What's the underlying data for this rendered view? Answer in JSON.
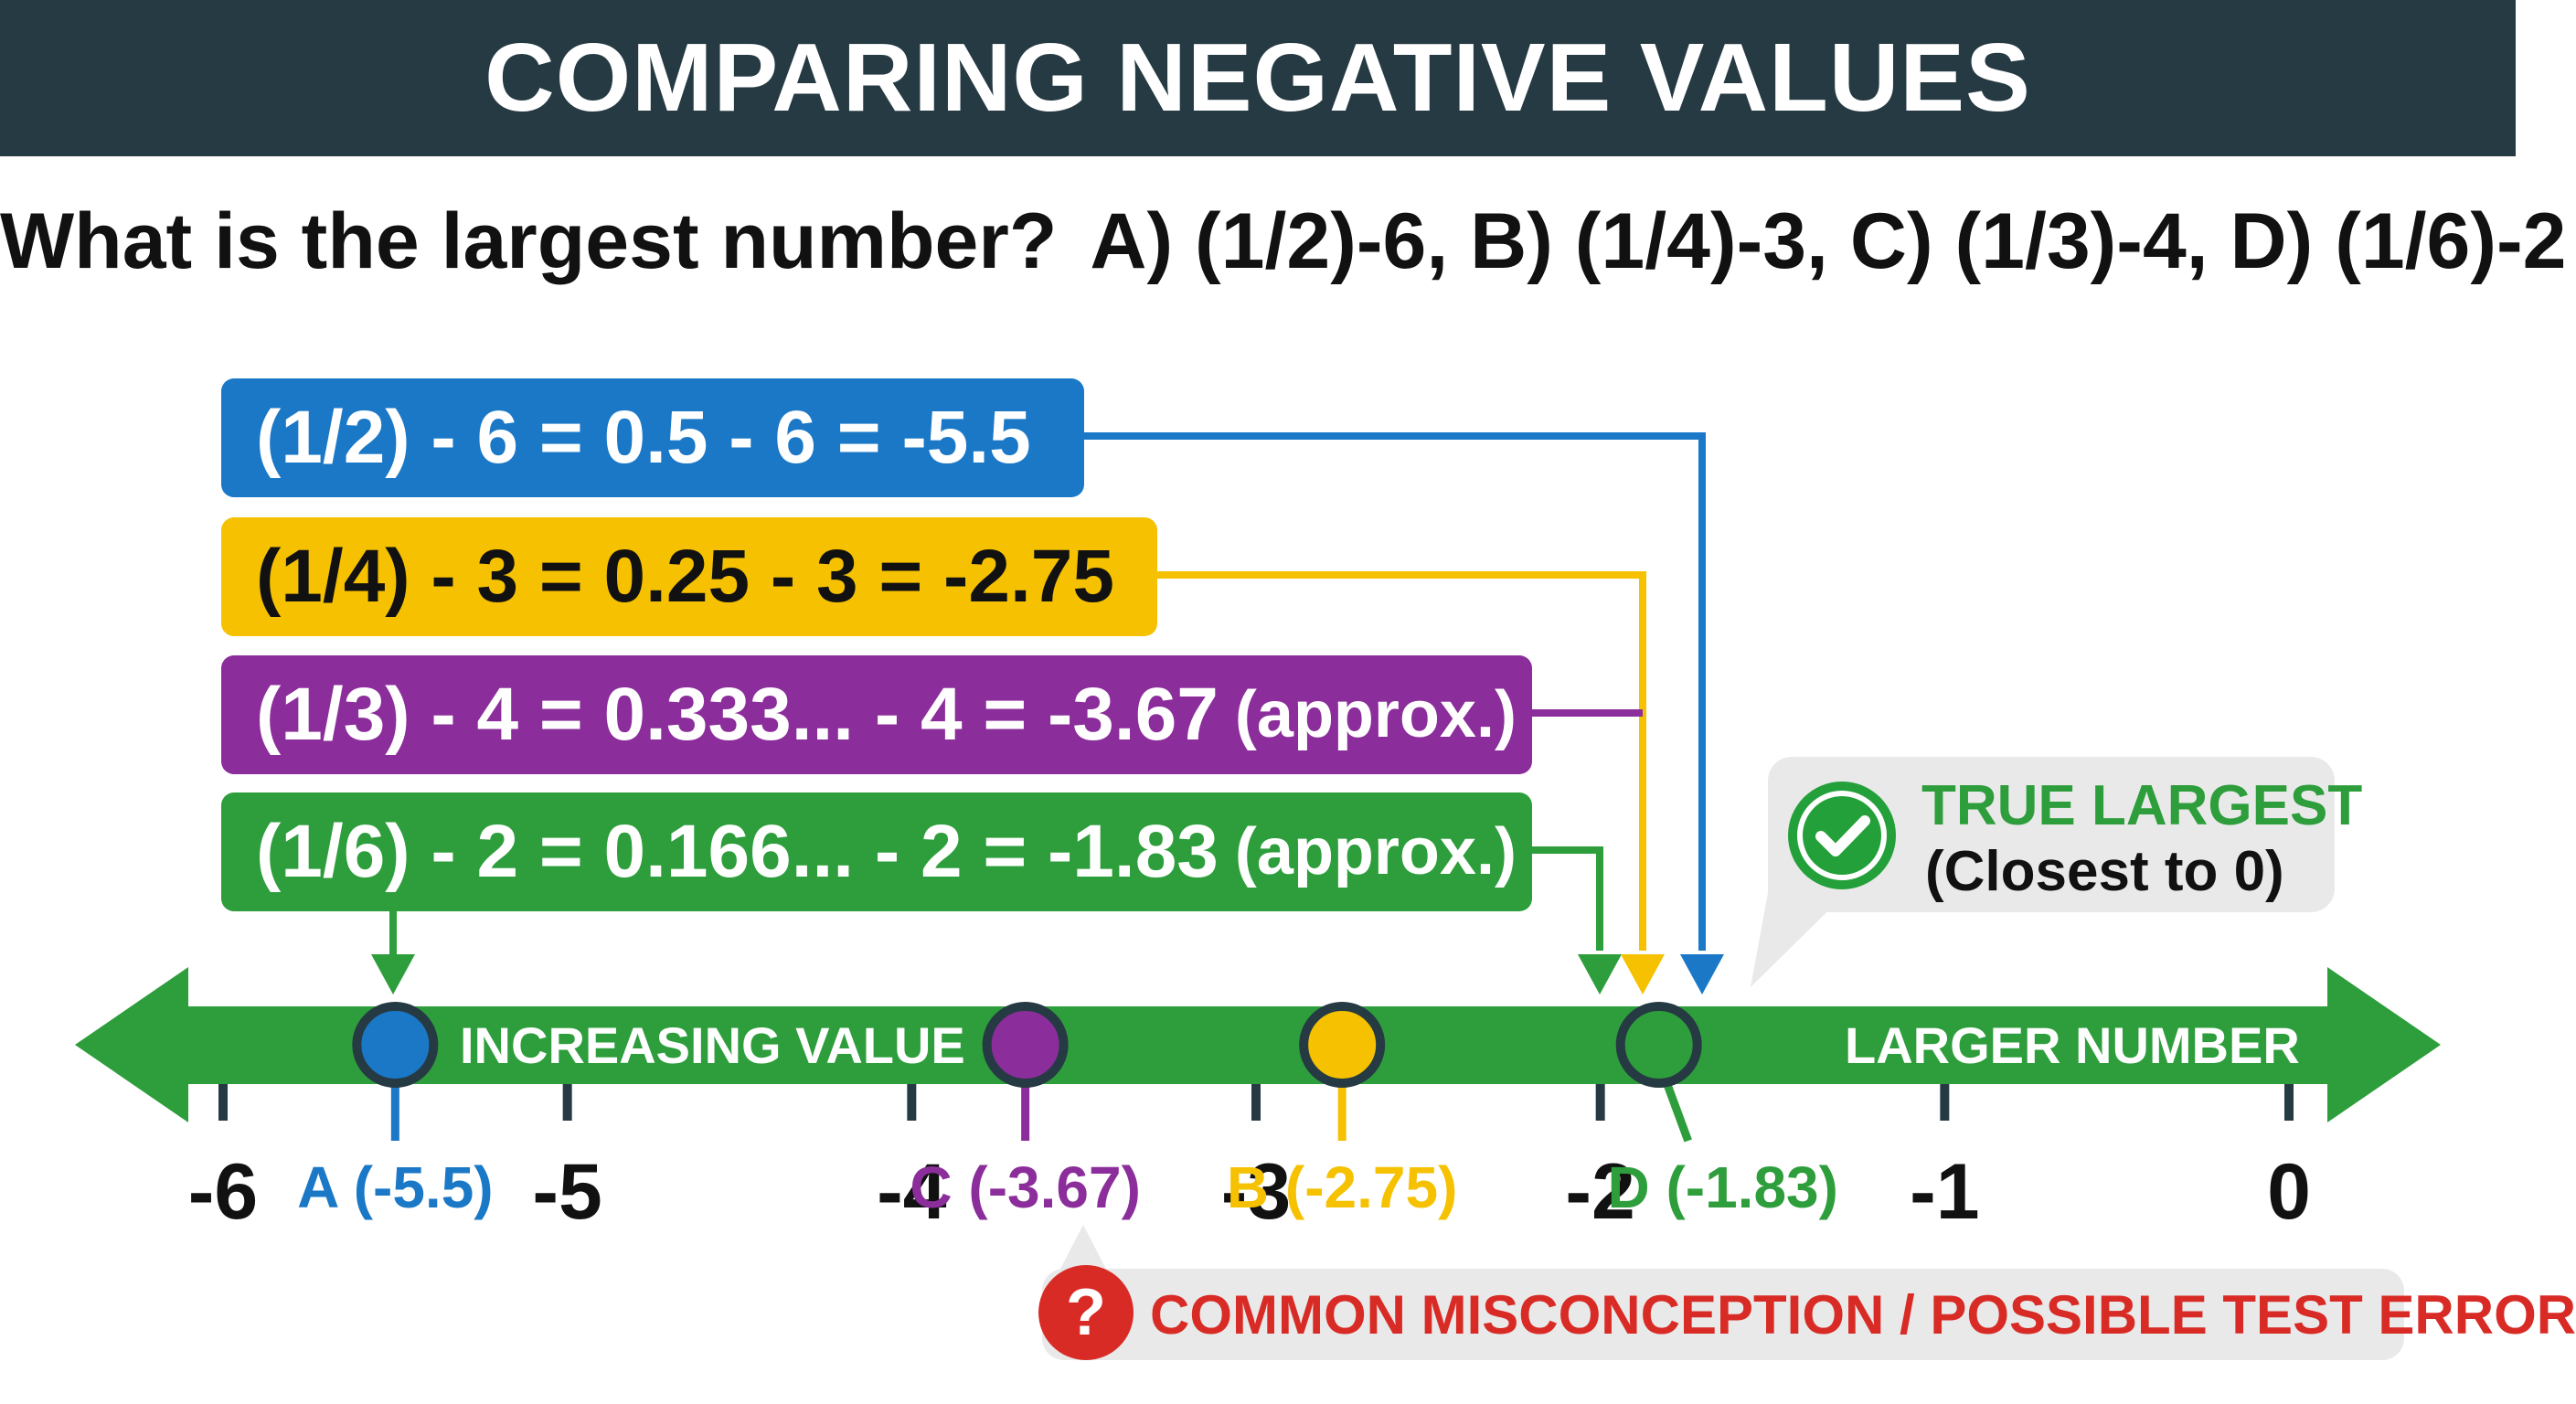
{
  "header": {
    "title": "COMPARING NEGATIVE VALUES"
  },
  "question": {
    "prompt": "What is the largest number?",
    "choices": "A) (1/2)-6, B) (1/4)-3, C) (1/3)-4, D) (1/6)-2"
  },
  "calculations": [
    {
      "id": "A",
      "expression": "(1/2) - 6 = 0.5 - 6 = -5.5",
      "approx": "",
      "color": "#1a78c7"
    },
    {
      "id": "B",
      "expression": "(1/4) - 3 = 0.25 - 3 = -2.75",
      "approx": "",
      "color": "#f5c100"
    },
    {
      "id": "C",
      "expression": "(1/3) - 4 = 0.333... - 4 = -3.67",
      "approx": "(approx.)",
      "color": "#8b2d9a"
    },
    {
      "id": "D",
      "expression": "(1/6) - 2 = 0.166... - 2 = -1.83",
      "approx": "(approx.)",
      "color": "#2d9e3b"
    }
  ],
  "number_line": {
    "range": [
      -6,
      0
    ],
    "ticks": [
      "-6",
      "-5",
      "-4",
      "-3",
      "-2",
      "-1",
      "0"
    ],
    "band_left_label": "INCREASING VALUE",
    "band_right_label": "LARGER NUMBER",
    "band_color": "#2d9e3b",
    "points": [
      {
        "id": "A",
        "value": -5.5,
        "label": "A (-5.5)",
        "color": "#1a78c7"
      },
      {
        "id": "C",
        "value": -3.67,
        "label": "C (-3.67)",
        "color": "#8b2d9a"
      },
      {
        "id": "B",
        "value": -2.75,
        "label": "B (-2.75)",
        "color": "#f5c100"
      },
      {
        "id": "D",
        "value": -1.83,
        "label": "D (-1.83)",
        "color": "#2d9e3b"
      }
    ]
  },
  "callout_true": {
    "title": "TRUE LARGEST",
    "subtitle": "(Closest to 0)",
    "icon": "check-icon"
  },
  "callout_error": {
    "text": "COMMON MISCONCEPTION / POSSIBLE TEST ERROR",
    "icon": "question-icon",
    "glyph": "?"
  }
}
